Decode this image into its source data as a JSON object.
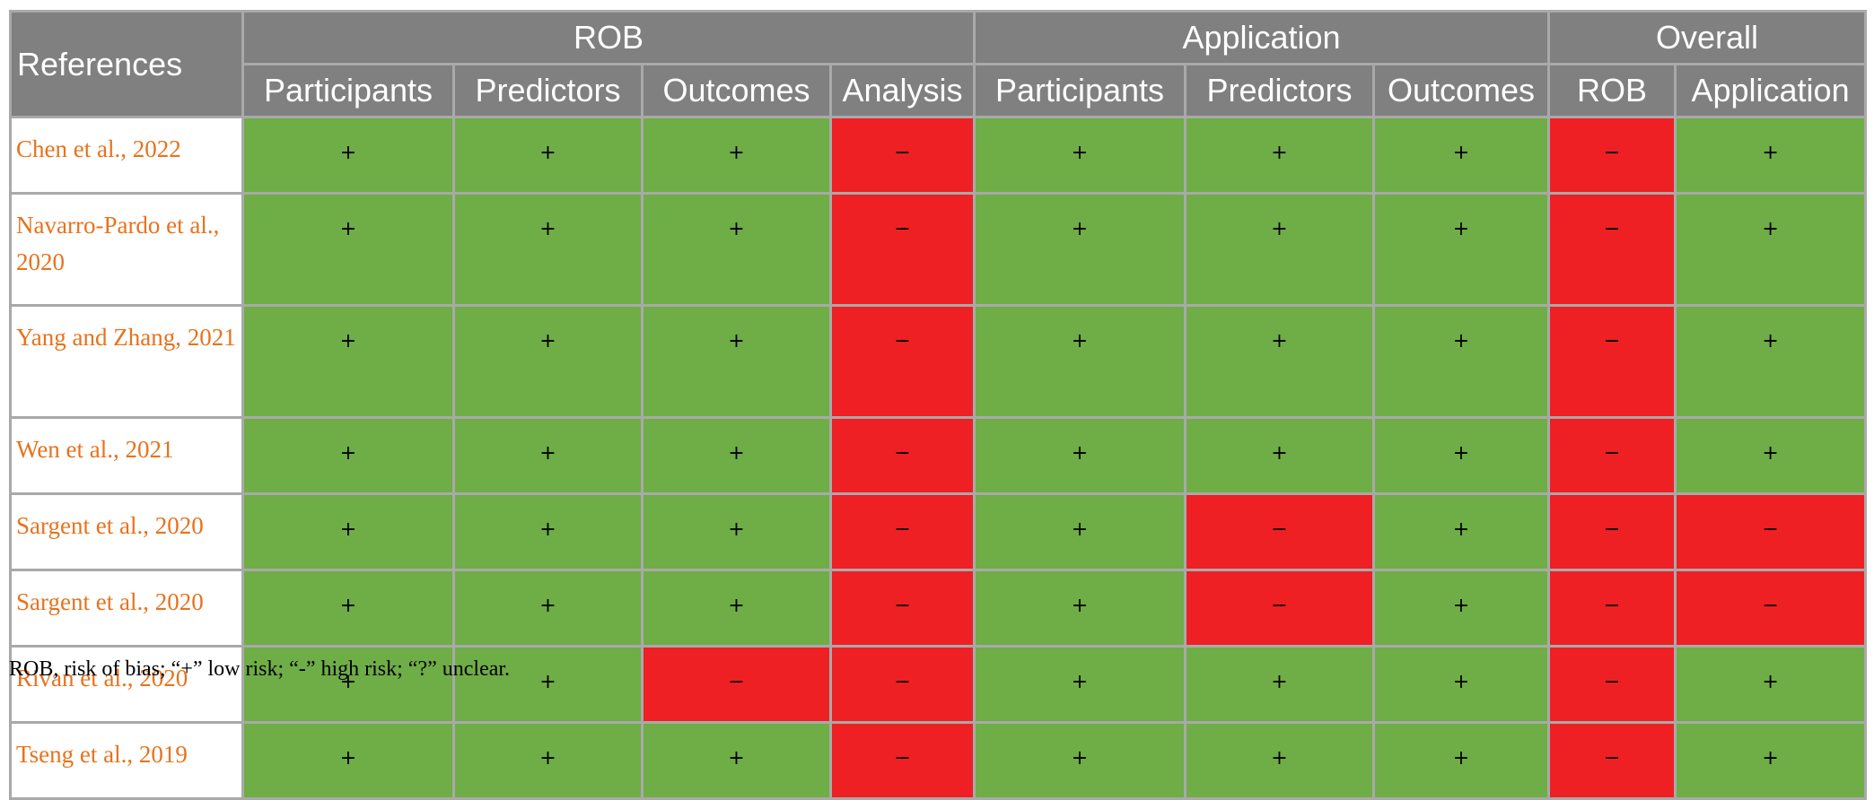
{
  "header": {
    "references": "References",
    "groups": [
      {
        "label": "ROB",
        "span": 4
      },
      {
        "label": "Application",
        "span": 3
      },
      {
        "label": "Overall",
        "span": 2
      }
    ],
    "subcolumns": [
      "Participants",
      "Predictors",
      "Outcomes",
      "Analysis",
      "Participants",
      "Predictors",
      "Outcomes",
      "ROB",
      "Application"
    ]
  },
  "legend": {
    "low": "+",
    "high": "−"
  },
  "colors": {
    "header_bg": "#808080",
    "low_risk": "#6fad47",
    "high_risk": "#ee2024",
    "reference_text": "#e8721c",
    "border": "#a9a9a9"
  },
  "rows": [
    {
      "reference": "Chen et al., 2022",
      "cells": [
        "+",
        "+",
        "+",
        "−",
        "+",
        "+",
        "+",
        "−",
        "+"
      ]
    },
    {
      "reference": "Navarro-Pardo et al., 2020",
      "cells": [
        "+",
        "+",
        "+",
        "−",
        "+",
        "+",
        "+",
        "−",
        "+"
      ]
    },
    {
      "reference": "Yang and Zhang, 2021",
      "cells": [
        "+",
        "+",
        "+",
        "−",
        "+",
        "+",
        "+",
        "−",
        "+"
      ]
    },
    {
      "reference": "Wen et al., 2021",
      "cells": [
        "+",
        "+",
        "+",
        "−",
        "+",
        "+",
        "+",
        "−",
        "+"
      ]
    },
    {
      "reference": "Sargent et al., 2020",
      "cells": [
        "+",
        "+",
        "+",
        "−",
        "+",
        "−",
        "+",
        "−",
        "−"
      ]
    },
    {
      "reference": "Sargent et al., 2020",
      "cells": [
        "+",
        "+",
        "+",
        "−",
        "+",
        "−",
        "+",
        "−",
        "−"
      ]
    },
    {
      "reference": "Rivan et al., 2020",
      "cells": [
        "+",
        "+",
        "−",
        "−",
        "+",
        "+",
        "+",
        "−",
        "+"
      ]
    },
    {
      "reference": "Tseng et al., 2019",
      "cells": [
        "+",
        "+",
        "+",
        "−",
        "+",
        "+",
        "+",
        "−",
        "+"
      ]
    }
  ],
  "footnote": "ROB, risk of bias; “+” low risk; “-” high risk; “?” unclear."
}
